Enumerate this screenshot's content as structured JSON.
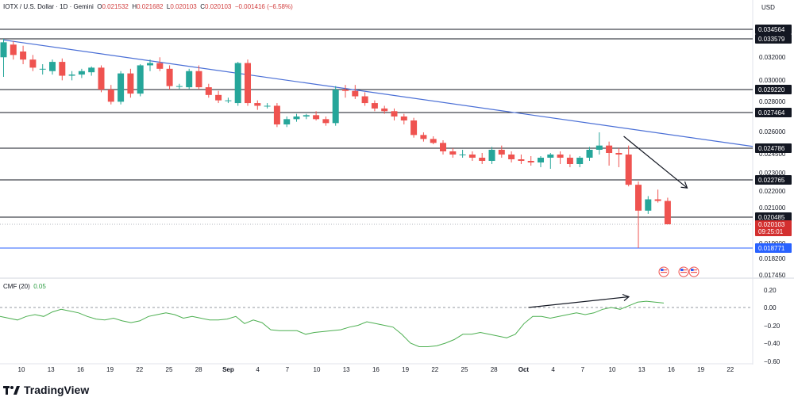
{
  "header": {
    "symbol": "IOTX / U.S. Dollar · 1D · Gemini",
    "o_label": "O",
    "o_value": "0.021532",
    "h_label": "H",
    "h_value": "0.021682",
    "l_label": "L",
    "l_value": "0.020103",
    "c_label": "C",
    "c_value": "0.020103",
    "change": "−0.001416 (−6.58%)"
  },
  "currency": "USD",
  "indicator": {
    "name": "CMF (20)",
    "value": "0.05"
  },
  "branding": {
    "logo_text": "TradingView"
  },
  "colors": {
    "up": "#26a69a",
    "down": "#ef5350",
    "trendline": "#4a6fd6",
    "support": "#2962ff",
    "cmf": "#4caf50",
    "label_dark": "#131722",
    "label_red": "#d32f2f",
    "label_blue": "#2962ff"
  },
  "chart_data": [
    {
      "type": "candlestick",
      "title": "IOTX / U.S. Dollar · 1D · Gemini",
      "y_axis_ticks": [
        "0.032000",
        "0.030000",
        "0.028000",
        "0.026000",
        "0.024500",
        "0.023000",
        "0.022000",
        "0.021000",
        "0.019000",
        "0.018200",
        "0.017450"
      ],
      "x_axis_ticks": [
        "10",
        "13",
        "16",
        "19",
        "22",
        "25",
        "28",
        "Sep",
        "4",
        "7",
        "10",
        "13",
        "16",
        "19",
        "22",
        "25",
        "28",
        "Oct",
        "4",
        "7",
        "10",
        "13",
        "16",
        "19",
        "22"
      ],
      "price_levels": [
        {
          "label": "0.034564",
          "style": "dark"
        },
        {
          "label": "0.033579",
          "style": "dark"
        },
        {
          "label": "0.029220",
          "style": "dark"
        },
        {
          "label": "0.027464",
          "style": "dark"
        },
        {
          "label": "0.024786",
          "style": "dark"
        },
        {
          "label": "0.022765",
          "style": "dark"
        },
        {
          "label": "0.020485",
          "style": "dark"
        },
        {
          "label": "0.020103",
          "sub_label": "09:25:01",
          "style": "red"
        },
        {
          "label": "0.018771",
          "style": "blue"
        }
      ],
      "candles": [
        {
          "o": 0.032,
          "h": 0.0336,
          "l": 0.0303,
          "c": 0.0333
        },
        {
          "o": 0.0331,
          "h": 0.0334,
          "l": 0.0318,
          "c": 0.0322
        },
        {
          "o": 0.0325,
          "h": 0.033,
          "l": 0.0314,
          "c": 0.0318
        },
        {
          "o": 0.0318,
          "h": 0.0322,
          "l": 0.0308,
          "c": 0.0311
        },
        {
          "o": 0.031,
          "h": 0.0314,
          "l": 0.0305,
          "c": 0.031
        },
        {
          "o": 0.0308,
          "h": 0.0318,
          "l": 0.0305,
          "c": 0.0316
        },
        {
          "o": 0.0316,
          "h": 0.0319,
          "l": 0.03,
          "c": 0.0304
        },
        {
          "o": 0.0304,
          "h": 0.0308,
          "l": 0.03,
          "c": 0.0305
        },
        {
          "o": 0.0305,
          "h": 0.031,
          "l": 0.0302,
          "c": 0.0308
        },
        {
          "o": 0.0307,
          "h": 0.0312,
          "l": 0.0304,
          "c": 0.0311
        },
        {
          "o": 0.0311,
          "h": 0.0313,
          "l": 0.029,
          "c": 0.0292
        },
        {
          "o": 0.0292,
          "h": 0.0296,
          "l": 0.0281,
          "c": 0.0283
        },
        {
          "o": 0.0283,
          "h": 0.0308,
          "l": 0.0281,
          "c": 0.0306
        },
        {
          "o": 0.0306,
          "h": 0.031,
          "l": 0.0286,
          "c": 0.0289
        },
        {
          "o": 0.0289,
          "h": 0.0314,
          "l": 0.0287,
          "c": 0.0313
        },
        {
          "o": 0.0313,
          "h": 0.0318,
          "l": 0.0308,
          "c": 0.0315
        },
        {
          "o": 0.0315,
          "h": 0.032,
          "l": 0.0308,
          "c": 0.031
        },
        {
          "o": 0.031,
          "h": 0.0313,
          "l": 0.0292,
          "c": 0.0295
        },
        {
          "o": 0.0295,
          "h": 0.0297,
          "l": 0.0292,
          "c": 0.0295
        },
        {
          "o": 0.0294,
          "h": 0.031,
          "l": 0.0292,
          "c": 0.0308
        },
        {
          "o": 0.0308,
          "h": 0.0313,
          "l": 0.0292,
          "c": 0.0294
        },
        {
          "o": 0.0294,
          "h": 0.0297,
          "l": 0.0286,
          "c": 0.0288
        },
        {
          "o": 0.0288,
          "h": 0.0291,
          "l": 0.0282,
          "c": 0.0284
        },
        {
          "o": 0.0284,
          "h": 0.0286,
          "l": 0.0282,
          "c": 0.0284
        },
        {
          "o": 0.0282,
          "h": 0.0316,
          "l": 0.028,
          "c": 0.0315
        },
        {
          "o": 0.0315,
          "h": 0.0318,
          "l": 0.028,
          "c": 0.0282
        },
        {
          "o": 0.0282,
          "h": 0.0284,
          "l": 0.0277,
          "c": 0.028
        },
        {
          "o": 0.028,
          "h": 0.0282,
          "l": 0.0278,
          "c": 0.028
        },
        {
          "o": 0.028,
          "h": 0.0282,
          "l": 0.0264,
          "c": 0.0266
        },
        {
          "o": 0.0266,
          "h": 0.0272,
          "l": 0.0264,
          "c": 0.027
        },
        {
          "o": 0.027,
          "h": 0.0274,
          "l": 0.0268,
          "c": 0.0272
        },
        {
          "o": 0.0272,
          "h": 0.0274,
          "l": 0.027,
          "c": 0.0273
        },
        {
          "o": 0.0273,
          "h": 0.0276,
          "l": 0.0269,
          "c": 0.027
        },
        {
          "o": 0.027,
          "h": 0.0272,
          "l": 0.0265,
          "c": 0.0267
        },
        {
          "o": 0.0267,
          "h": 0.0295,
          "l": 0.0265,
          "c": 0.0292
        },
        {
          "o": 0.0292,
          "h": 0.0296,
          "l": 0.0286,
          "c": 0.0291
        },
        {
          "o": 0.0291,
          "h": 0.0296,
          "l": 0.0285,
          "c": 0.0287
        },
        {
          "o": 0.0287,
          "h": 0.029,
          "l": 0.028,
          "c": 0.0282
        },
        {
          "o": 0.0282,
          "h": 0.0284,
          "l": 0.0276,
          "c": 0.0278
        },
        {
          "o": 0.0278,
          "h": 0.028,
          "l": 0.0274,
          "c": 0.0276
        },
        {
          "o": 0.0276,
          "h": 0.0278,
          "l": 0.0269,
          "c": 0.0272
        },
        {
          "o": 0.0272,
          "h": 0.0274,
          "l": 0.0266,
          "c": 0.0269
        },
        {
          "o": 0.0269,
          "h": 0.0271,
          "l": 0.0256,
          "c": 0.0258
        },
        {
          "o": 0.0258,
          "h": 0.026,
          "l": 0.0253,
          "c": 0.0255
        },
        {
          "o": 0.0255,
          "h": 0.0257,
          "l": 0.0251,
          "c": 0.0252
        },
        {
          "o": 0.0252,
          "h": 0.0254,
          "l": 0.0244,
          "c": 0.0246
        },
        {
          "o": 0.0246,
          "h": 0.0248,
          "l": 0.0242,
          "c": 0.0244
        },
        {
          "o": 0.0244,
          "h": 0.0247,
          "l": 0.0242,
          "c": 0.0244
        },
        {
          "o": 0.0244,
          "h": 0.0246,
          "l": 0.024,
          "c": 0.0242
        },
        {
          "o": 0.0242,
          "h": 0.0245,
          "l": 0.0238,
          "c": 0.024
        },
        {
          "o": 0.024,
          "h": 0.0249,
          "l": 0.0238,
          "c": 0.0247
        },
        {
          "o": 0.0247,
          "h": 0.025,
          "l": 0.0242,
          "c": 0.0244
        },
        {
          "o": 0.0244,
          "h": 0.0246,
          "l": 0.0239,
          "c": 0.0241
        },
        {
          "o": 0.0241,
          "h": 0.0244,
          "l": 0.0238,
          "c": 0.024
        },
        {
          "o": 0.024,
          "h": 0.0243,
          "l": 0.0237,
          "c": 0.0239
        },
        {
          "o": 0.0239,
          "h": 0.0243,
          "l": 0.0236,
          "c": 0.0242
        },
        {
          "o": 0.0242,
          "h": 0.0245,
          "l": 0.0235,
          "c": 0.0244
        },
        {
          "o": 0.0244,
          "h": 0.0246,
          "l": 0.0238,
          "c": 0.0242
        },
        {
          "o": 0.0242,
          "h": 0.0244,
          "l": 0.0236,
          "c": 0.0238
        },
        {
          "o": 0.0238,
          "h": 0.0243,
          "l": 0.0236,
          "c": 0.0242
        },
        {
          "o": 0.0242,
          "h": 0.0249,
          "l": 0.024,
          "c": 0.0247
        },
        {
          "o": 0.0247,
          "h": 0.026,
          "l": 0.0244,
          "c": 0.025
        },
        {
          "o": 0.025,
          "h": 0.0253,
          "l": 0.0237,
          "c": 0.0245
        },
        {
          "o": 0.0245,
          "h": 0.0248,
          "l": 0.0236,
          "c": 0.0244
        },
        {
          "o": 0.0244,
          "h": 0.025,
          "l": 0.0224,
          "c": 0.0225
        },
        {
          "o": 0.0225,
          "h": 0.0227,
          "l": 0.0188,
          "c": 0.0209
        },
        {
          "o": 0.0209,
          "h": 0.0218,
          "l": 0.0207,
          "c": 0.0216
        },
        {
          "o": 0.0216,
          "h": 0.0222,
          "l": 0.0214,
          "c": 0.0215
        },
        {
          "o": 0.0215,
          "h": 0.0217,
          "l": 0.0201,
          "c": 0.0201
        }
      ],
      "trendline": [
        {
          "candle": 0,
          "price": 0.0335
        },
        {
          "candle": 78,
          "price": 0.0248
        }
      ],
      "arrow_down": [
        {
          "candle": 63.5,
          "price": 0.0257
        },
        {
          "candle": 70,
          "price": 0.0223
        }
      ],
      "support_level": 0.018771
    },
    {
      "type": "line",
      "title": "CMF (20)",
      "series": [
        {
          "name": "CMF (20)",
          "values": [
            -0.1,
            -0.12,
            -0.14,
            -0.1,
            -0.08,
            -0.1,
            -0.05,
            -0.02,
            -0.04,
            -0.06,
            -0.1,
            -0.13,
            -0.14,
            -0.12,
            -0.15,
            -0.17,
            -0.15,
            -0.1,
            -0.08,
            -0.06,
            -0.08,
            -0.12,
            -0.1,
            -0.12,
            -0.14,
            -0.14,
            -0.13,
            -0.1,
            -0.18,
            -0.14,
            -0.17,
            -0.25,
            -0.26,
            -0.26,
            -0.26,
            -0.3,
            -0.28,
            -0.27,
            -0.26,
            -0.25,
            -0.22,
            -0.2,
            -0.16,
            -0.18,
            -0.2,
            -0.22,
            -0.3,
            -0.4,
            -0.44,
            -0.44,
            -0.43,
            -0.4,
            -0.36,
            -0.3,
            -0.3,
            -0.28,
            -0.3,
            -0.32,
            -0.34,
            -0.3,
            -0.18,
            -0.1,
            -0.1,
            -0.12,
            -0.1,
            -0.08,
            -0.06,
            -0.08,
            -0.06,
            -0.02,
            0.0,
            -0.02,
            0.02,
            0.06,
            0.07,
            0.06,
            0.05
          ]
        }
      ],
      "y_axis_ticks": [
        "0.20",
        "0.00",
        "−0.20",
        "−0.40",
        "−0.60"
      ],
      "ylim": [
        -0.6,
        0.3
      ],
      "arrow_up": [
        {
          "index": 60.5,
          "value": 0.0
        },
        {
          "index": 72,
          "value": 0.12
        }
      ]
    }
  ]
}
